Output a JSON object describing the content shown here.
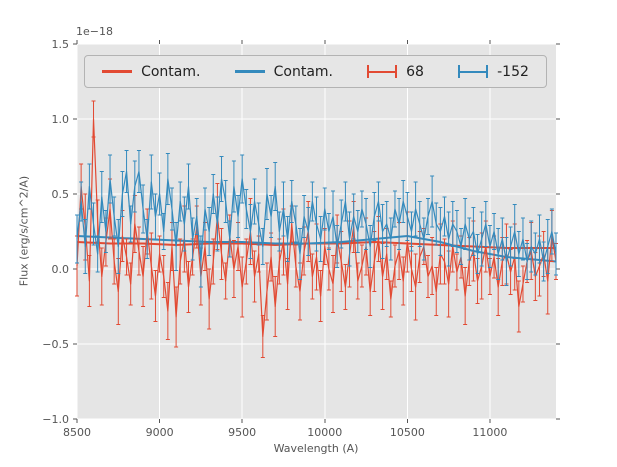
{
  "figure": {
    "bg_color": "#ffffff",
    "axes_bg_color": "#e5e5e5",
    "grid_color": "#ffffff",
    "tick_color": "#555555",
    "text_color": "#555555",
    "legend_bg_color": "#e6e6e6",
    "legend_border_color": "#b3b3b3",
    "legend_text_color": "#222222"
  },
  "chart_data": {
    "type": "line",
    "title": "",
    "xlabel": "Wavelength (A)",
    "ylabel": "Flux (erg/s/cm^2/A)",
    "offset_text": "1e−18",
    "xlim": [
      8500,
      11400
    ],
    "ylim": [
      -1.0,
      1.5
    ],
    "grid": true,
    "legend_position": "upper center, horizontal, inside axes",
    "xticks": [
      8500,
      9000,
      9500,
      10000,
      10500,
      11000
    ],
    "xtick_labels": [
      "8500",
      "9000",
      "9500",
      "10000",
      "10500",
      "11000"
    ],
    "yticks": [
      -1.0,
      -0.5,
      0.0,
      0.5,
      1.0,
      1.5
    ],
    "ytick_labels": [
      "−1.0",
      "−0.5",
      "0.0",
      "0.5",
      "1.0",
      "1.5"
    ],
    "legend": {
      "items": [
        {
          "label": "Contam.",
          "color": "#E24A33",
          "glyph": "line"
        },
        {
          "label": "Contam.",
          "color": "#348ABD",
          "glyph": "line"
        },
        {
          "label": "68",
          "color": "#E24A33",
          "glyph": "errorbar"
        },
        {
          "label": "-152",
          "color": "#348ABD",
          "glyph": "errorbar"
        }
      ]
    },
    "x_grid": {
      "start": 8500,
      "step": 25,
      "count": 117
    },
    "series": [
      {
        "name": "Contam. red",
        "type": "line",
        "color": "#E24A33",
        "x": [
          8500,
          8700,
          8900,
          9100,
          9300,
          9500,
          9700,
          9900,
          10100,
          10300,
          10500,
          10700,
          10900,
          11100,
          11300,
          11400
        ],
        "values": [
          0.18,
          0.17,
          0.17,
          0.16,
          0.17,
          0.17,
          0.16,
          0.17,
          0.17,
          0.18,
          0.17,
          0.16,
          0.15,
          0.14,
          0.14,
          0.14
        ]
      },
      {
        "name": "Contam. blue",
        "type": "line",
        "color": "#348ABD",
        "x": [
          8500,
          8700,
          8900,
          9100,
          9300,
          9500,
          9700,
          9900,
          10100,
          10300,
          10500,
          10700,
          10900,
          11100,
          11300,
          11400
        ],
        "values": [
          0.22,
          0.21,
          0.2,
          0.19,
          0.18,
          0.18,
          0.17,
          0.17,
          0.18,
          0.2,
          0.22,
          0.18,
          0.12,
          0.08,
          0.06,
          0.05
        ]
      },
      {
        "name": "68",
        "type": "errorbar",
        "color": "#E24A33",
        "values": [
          0.02,
          0.55,
          0.28,
          -0.08,
          1.0,
          0.32,
          -0.05,
          0.18,
          0.4,
          0.05,
          -0.15,
          0.22,
          0.08,
          -0.1,
          0.3,
          0.12,
          -0.05,
          0.25,
          0.02,
          -0.18,
          0.1,
          -0.05,
          -0.28,
          0.15,
          -0.32,
          0.05,
          0.2,
          -0.12,
          0.08,
          0.28,
          -0.05,
          0.15,
          -0.2,
          0.05,
          0.35,
          0.1,
          -0.08,
          0.22,
          0.0,
          0.15,
          -0.12,
          0.05,
          0.25,
          -0.05,
          0.1,
          -0.45,
          -0.15,
          0.08,
          -0.25,
          0.05,
          0.18,
          -0.1,
          0.3,
          0.02,
          -0.15,
          0.12,
          0.25,
          -0.05,
          0.08,
          -0.18,
          0.15,
          0.0,
          -0.1,
          0.2,
          0.05,
          -0.12,
          0.1,
          0.28,
          -0.08,
          0.02,
          0.15,
          -0.15,
          0.05,
          0.2,
          -0.05,
          0.1,
          -0.2,
          0.02,
          0.12,
          -0.08,
          0.18,
          0.0,
          -0.12,
          0.08,
          0.15,
          -0.05,
          0.02,
          -0.15,
          0.1,
          0.05,
          -0.1,
          0.15,
          -0.02,
          0.08,
          -0.18,
          0.05,
          0.12,
          -0.08,
          0.02,
          0.15,
          -0.05,
          0.08,
          -0.12,
          0.05,
          0.1,
          -0.02,
          0.08,
          -0.25,
          -0.1,
          0.05,
          0.12,
          -0.05,
          0.02,
          0.1,
          -0.08,
          0.22,
          0.05
        ],
        "errors": [
          0.2,
          0.15,
          0.22,
          0.17,
          0.12,
          0.14,
          0.19,
          0.16,
          0.2,
          0.15,
          0.22,
          0.17,
          0.12,
          0.14,
          0.19,
          0.16,
          0.2,
          0.15,
          0.22,
          0.17,
          0.12,
          0.14,
          0.19,
          0.16,
          0.2,
          0.15,
          0.22,
          0.17,
          0.12,
          0.14,
          0.19,
          0.16,
          0.2,
          0.15,
          0.22,
          0.17,
          0.12,
          0.14,
          0.19,
          0.16,
          0.2,
          0.15,
          0.22,
          0.17,
          0.12,
          0.14,
          0.19,
          0.16,
          0.2,
          0.15,
          0.22,
          0.17,
          0.12,
          0.14,
          0.19,
          0.16,
          0.2,
          0.15,
          0.22,
          0.17,
          0.12,
          0.14,
          0.19,
          0.16,
          0.2,
          0.15,
          0.22,
          0.17,
          0.12,
          0.14,
          0.19,
          0.16,
          0.2,
          0.15,
          0.22,
          0.17,
          0.12,
          0.14,
          0.19,
          0.16,
          0.2,
          0.15,
          0.22,
          0.17,
          0.12,
          0.14,
          0.19,
          0.16,
          0.2,
          0.15,
          0.22,
          0.17,
          0.12,
          0.14,
          0.19,
          0.16,
          0.2,
          0.15,
          0.22,
          0.17,
          0.12,
          0.14,
          0.19,
          0.16,
          0.2,
          0.15,
          0.22,
          0.17,
          0.12,
          0.14,
          0.19,
          0.16,
          0.2,
          0.15,
          0.22,
          0.17,
          0.12
        ]
      },
      {
        "name": "-152",
        "type": "errorbar",
        "color": "#348ABD",
        "values": [
          0.2,
          0.45,
          0.15,
          0.55,
          0.3,
          0.1,
          0.48,
          0.25,
          0.6,
          0.35,
          0.15,
          0.5,
          0.65,
          0.3,
          0.55,
          0.65,
          0.4,
          0.2,
          0.58,
          0.35,
          0.5,
          0.25,
          0.6,
          0.4,
          0.15,
          0.45,
          0.3,
          0.55,
          0.2,
          0.35,
          0.05,
          0.4,
          0.25,
          0.5,
          0.3,
          0.6,
          0.45,
          0.2,
          0.55,
          0.35,
          0.6,
          0.4,
          0.25,
          0.45,
          0.3,
          0.15,
          0.5,
          0.35,
          0.55,
          0.25,
          0.4,
          0.2,
          0.45,
          0.3,
          0.1,
          0.35,
          0.25,
          0.45,
          0.3,
          0.2,
          0.4,
          0.25,
          0.35,
          0.15,
          0.3,
          0.45,
          0.2,
          0.35,
          0.25,
          0.4,
          0.3,
          0.15,
          0.35,
          0.45,
          0.25,
          0.3,
          0.2,
          0.4,
          0.3,
          0.45,
          0.35,
          0.25,
          0.4,
          0.3,
          0.2,
          0.35,
          0.45,
          0.3,
          0.25,
          0.35,
          0.2,
          0.3,
          0.25,
          0.15,
          0.3,
          0.2,
          0.25,
          0.1,
          0.2,
          0.3,
          0.15,
          0.25,
          0.1,
          0.2,
          0.05,
          0.15,
          0.25,
          0.1,
          0.2,
          0.05,
          0.15,
          0.1,
          0.2,
          0.05,
          0.15,
          0.25,
          0.1
        ],
        "errors": [
          0.16,
          0.13,
          0.18,
          0.15,
          0.14,
          0.12,
          0.17,
          0.14,
          0.16,
          0.13,
          0.18,
          0.15,
          0.14,
          0.12,
          0.17,
          0.14,
          0.16,
          0.13,
          0.18,
          0.15,
          0.14,
          0.12,
          0.17,
          0.14,
          0.16,
          0.13,
          0.18,
          0.15,
          0.14,
          0.12,
          0.17,
          0.14,
          0.16,
          0.13,
          0.18,
          0.15,
          0.14,
          0.12,
          0.17,
          0.14,
          0.16,
          0.13,
          0.18,
          0.15,
          0.14,
          0.12,
          0.17,
          0.14,
          0.16,
          0.13,
          0.18,
          0.15,
          0.14,
          0.12,
          0.17,
          0.14,
          0.16,
          0.13,
          0.18,
          0.15,
          0.14,
          0.12,
          0.17,
          0.14,
          0.16,
          0.13,
          0.18,
          0.15,
          0.14,
          0.12,
          0.17,
          0.14,
          0.16,
          0.13,
          0.18,
          0.15,
          0.14,
          0.12,
          0.17,
          0.14,
          0.16,
          0.13,
          0.18,
          0.15,
          0.14,
          0.12,
          0.17,
          0.14,
          0.16,
          0.13,
          0.18,
          0.15,
          0.14,
          0.12,
          0.17,
          0.14,
          0.16,
          0.13,
          0.18,
          0.15,
          0.14,
          0.12,
          0.17,
          0.14,
          0.16,
          0.13,
          0.18,
          0.15,
          0.14,
          0.12,
          0.17,
          0.14,
          0.16,
          0.13,
          0.18,
          0.15,
          0.14
        ]
      }
    ]
  }
}
